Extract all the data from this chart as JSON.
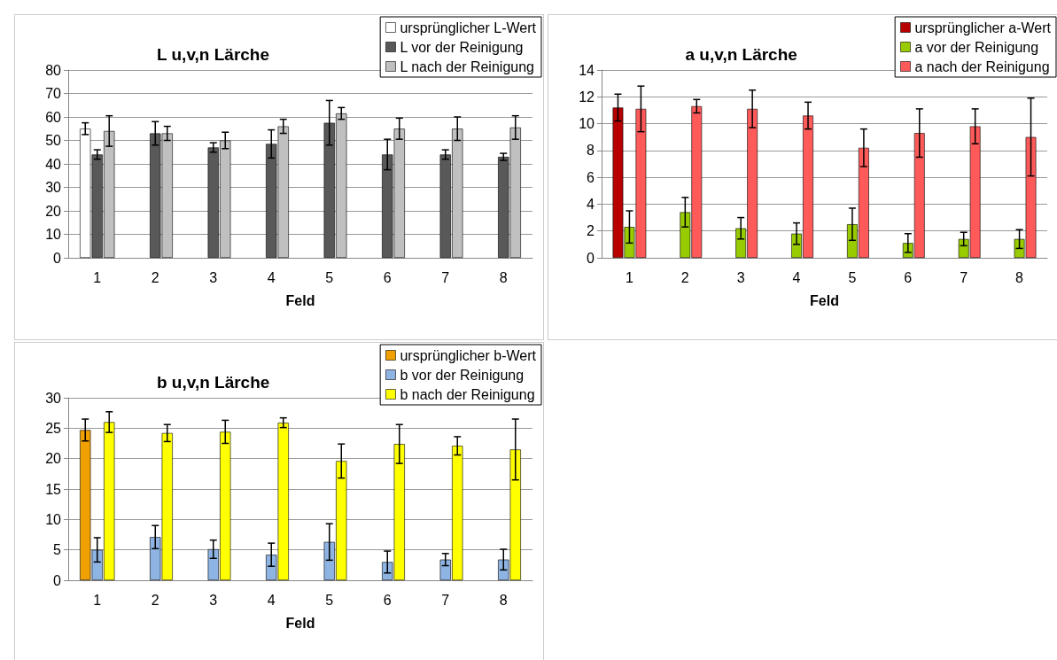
{
  "chart_data": [
    {
      "type": "bar",
      "title": "L u,v,n Lärche",
      "xlabel": "Feld",
      "categories": [
        "1",
        "2",
        "3",
        "4",
        "5",
        "6",
        "7",
        "8"
      ],
      "ylim": [
        0,
        80
      ],
      "yticks": [
        0,
        10,
        20,
        30,
        40,
        50,
        60,
        70,
        80
      ],
      "grid": "y",
      "legend": "top right",
      "series": [
        {
          "name": "ursprünglicher L-Wert",
          "color": "#ffffff",
          "values": [
            55,
            null,
            null,
            null,
            null,
            null,
            null,
            null
          ],
          "errors": [
            2.5,
            null,
            null,
            null,
            null,
            null,
            null,
            null
          ]
        },
        {
          "name": "L vor der Reinigung",
          "color": "#595959",
          "values": [
            44,
            53,
            47,
            48.5,
            57.5,
            44,
            44,
            43
          ],
          "errors": [
            2,
            5,
            2,
            6,
            9.5,
            6.5,
            2,
            1.5
          ]
        },
        {
          "name": "L nach der Reinigung",
          "color": "#c0c0c0",
          "values": [
            54,
            53,
            50,
            56,
            61.5,
            55,
            55,
            55.5
          ],
          "errors": [
            6.5,
            3,
            3.5,
            3,
            2.5,
            4.5,
            5,
            5
          ]
        }
      ]
    },
    {
      "type": "bar",
      "title": "a u,v,n Lärche",
      "xlabel": "Feld",
      "categories": [
        "1",
        "2",
        "3",
        "4",
        "5",
        "6",
        "7",
        "8"
      ],
      "ylim": [
        0,
        14
      ],
      "yticks": [
        0,
        2,
        4,
        6,
        8,
        10,
        12,
        14
      ],
      "grid": "y",
      "legend": "top right",
      "series": [
        {
          "name": "ursprünglicher a-Wert",
          "color": "#b80000",
          "values": [
            11.2,
            null,
            null,
            null,
            null,
            null,
            null,
            null
          ],
          "errors": [
            1,
            null,
            null,
            null,
            null,
            null,
            null,
            null
          ]
        },
        {
          "name": "a vor der Reinigung",
          "color": "#99cc00",
          "values": [
            2.3,
            3.4,
            2.2,
            1.8,
            2.5,
            1.1,
            1.4,
            1.4
          ],
          "errors": [
            1.2,
            1.1,
            0.8,
            0.8,
            1.2,
            0.7,
            0.5,
            0.7
          ]
        },
        {
          "name": "a nach der Reinigung",
          "color": "#ff5a5a",
          "values": [
            11.1,
            11.3,
            11.1,
            10.6,
            8.2,
            9.3,
            9.8,
            9
          ],
          "errors": [
            1.7,
            0.5,
            1.4,
            1,
            1.4,
            1.8,
            1.3,
            2.9
          ]
        }
      ]
    },
    {
      "type": "bar",
      "title": "b u,v,n Lärche",
      "xlabel": "Feld",
      "categories": [
        "1",
        "2",
        "3",
        "4",
        "5",
        "6",
        "7",
        "8"
      ],
      "ylim": [
        0,
        30
      ],
      "yticks": [
        0,
        5,
        10,
        15,
        20,
        25,
        30
      ],
      "grid": "y",
      "legend": "top right",
      "series": [
        {
          "name": "ursprünglicher b-Wert",
          "color": "#f0a000",
          "values": [
            24.7,
            null,
            null,
            null,
            null,
            null,
            null,
            null
          ],
          "errors": [
            1.8,
            null,
            null,
            null,
            null,
            null,
            null,
            null
          ]
        },
        {
          "name": "b vor der Reinigung",
          "color": "#8eb4e3",
          "values": [
            5,
            7.1,
            5.1,
            4.2,
            6.3,
            3,
            3.4,
            3.4
          ],
          "errors": [
            2,
            1.9,
            1.5,
            1.9,
            3,
            1.8,
            1,
            1.7
          ]
        },
        {
          "name": "b nach der Reinigung",
          "color": "#ffff00",
          "values": [
            26,
            24.2,
            24.4,
            25.9,
            19.6,
            22.4,
            22.1,
            21.5
          ],
          "errors": [
            1.7,
            1.4,
            1.9,
            0.8,
            2.8,
            3.2,
            1.5,
            5
          ]
        }
      ]
    }
  ]
}
